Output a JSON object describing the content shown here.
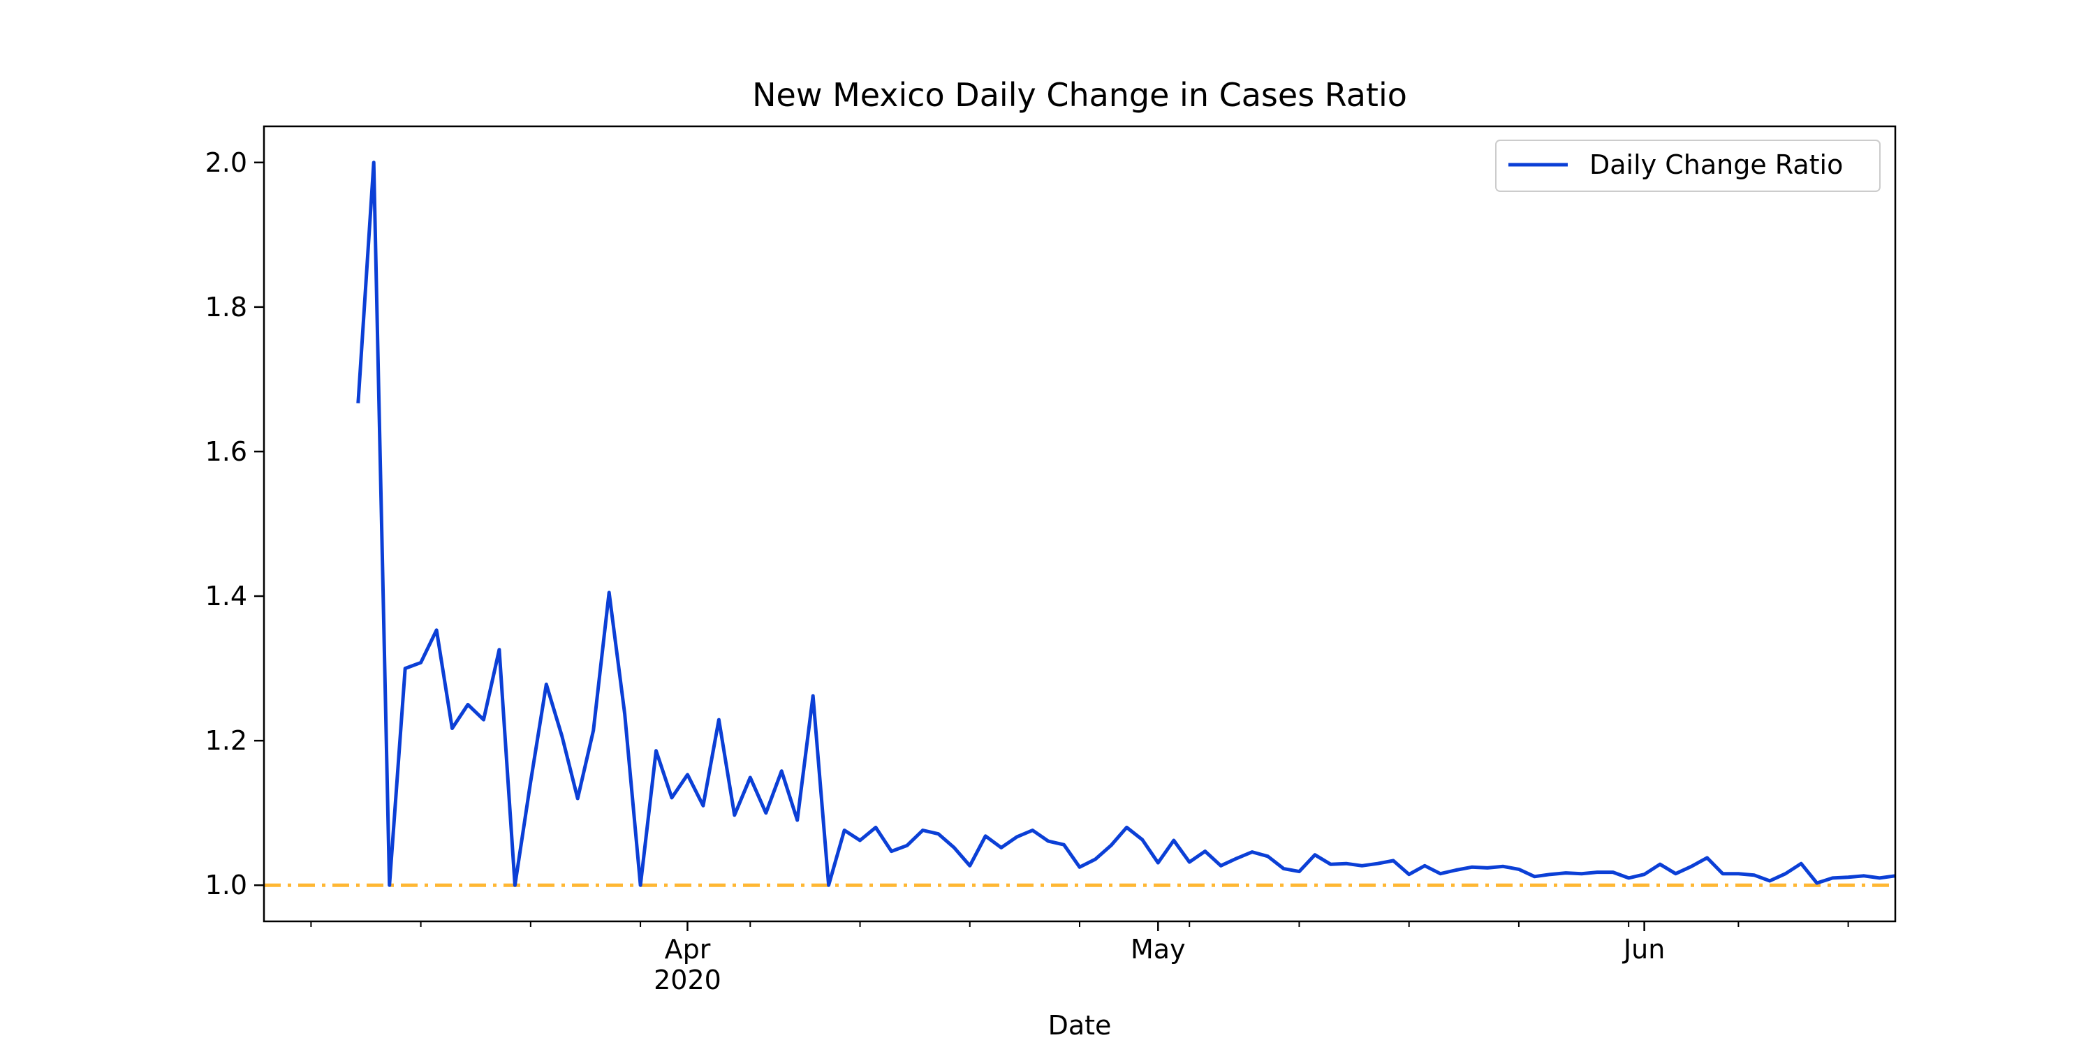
{
  "chart_data": {
    "type": "line",
    "title": "New Mexico Daily Change in Cases Ratio",
    "xlabel": "Date",
    "ylabel": "",
    "x_start": "2020-03-11",
    "x_range": [
      "2020-03-05",
      "2020-06-17"
    ],
    "ylim": [
      0.95,
      2.05
    ],
    "yticks": [
      1.0,
      1.2,
      1.4,
      1.6,
      1.8,
      2.0
    ],
    "ytick_labels": [
      "1.0",
      "1.2",
      "1.4",
      "1.6",
      "1.8",
      "2.0"
    ],
    "xticks_major": [
      {
        "date": "2020-04-01",
        "label": "Apr",
        "sublabel": "2020"
      },
      {
        "date": "2020-05-01",
        "label": "May",
        "sublabel": ""
      },
      {
        "date": "2020-06-01",
        "label": "Jun",
        "sublabel": ""
      }
    ],
    "xticks_minor": [
      "2020-03-08",
      "2020-03-15",
      "2020-03-22",
      "2020-03-29",
      "2020-04-05",
      "2020-04-12",
      "2020-04-19",
      "2020-04-26",
      "2020-05-03",
      "2020-05-10",
      "2020-05-17",
      "2020-05-24",
      "2020-05-31",
      "2020-06-07",
      "2020-06-14"
    ],
    "grid": false,
    "legend_position": "top-right",
    "series": [
      {
        "name": "Daily Change Ratio",
        "color": "#0b3fd6",
        "values": [
          1.667,
          2.0,
          1.0,
          1.3,
          1.308,
          1.353,
          1.217,
          1.25,
          1.229,
          1.326,
          1.0,
          1.143,
          1.278,
          1.206,
          1.12,
          1.214,
          1.405,
          1.237,
          1.0,
          1.186,
          1.121,
          1.153,
          1.11,
          1.229,
          1.097,
          1.149,
          1.1,
          1.158,
          1.09,
          1.262,
          1.0,
          1.076,
          1.062,
          1.08,
          1.047,
          1.055,
          1.076,
          1.071,
          1.052,
          1.027,
          1.068,
          1.052,
          1.067,
          1.076,
          1.061,
          1.056,
          1.025,
          1.036,
          1.055,
          1.08,
          1.063,
          1.031,
          1.062,
          1.032,
          1.047,
          1.027,
          1.037,
          1.046,
          1.04,
          1.023,
          1.019,
          1.042,
          1.029,
          1.03,
          1.027,
          1.03,
          1.034,
          1.015,
          1.027,
          1.016,
          1.021,
          1.025,
          1.024,
          1.026,
          1.022,
          1.012,
          1.015,
          1.017,
          1.016,
          1.018,
          1.018,
          1.01,
          1.015,
          1.029,
          1.016,
          1.026,
          1.038,
          1.016,
          1.016,
          1.014,
          1.006,
          1.016,
          1.03,
          1.003,
          1.01,
          1.011,
          1.013,
          1.01,
          1.013
        ]
      }
    ],
    "reference_line": {
      "y": 1.0,
      "color": "#ffb733",
      "style": "dash-dot"
    }
  }
}
